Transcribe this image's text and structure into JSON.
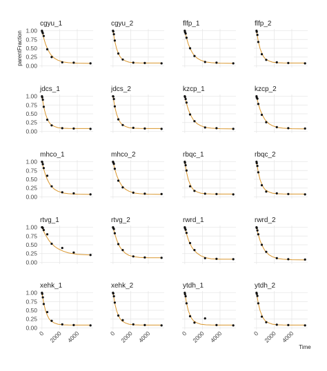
{
  "chart_data": {
    "type": "scatter",
    "ylabel": "parentFraction",
    "xlabel": "Time",
    "xlim": [
      -300,
      5800
    ],
    "ylim": [
      -0.05,
      1.05
    ],
    "xticks": [
      0,
      2000,
      4000
    ],
    "yticks": [
      {
        "value": 0,
        "label": "0.00"
      },
      {
        "value": 0.25,
        "label": "0.25"
      },
      {
        "value": 0.5,
        "label": "0.50"
      },
      {
        "value": 0.75,
        "label": "0.75"
      },
      {
        "value": 1,
        "label": "1.00"
      }
    ],
    "point_color": "#111111",
    "fit_color": "#d9952b",
    "grid": true,
    "x": [
      0,
      30,
      100,
      200,
      600,
      1100,
      2300,
      3600,
      5500
    ],
    "fit_x": [
      0,
      200,
      400,
      600,
      800,
      1000,
      1400,
      1800,
      2400,
      3000,
      4000,
      5500
    ],
    "panels": [
      {
        "title": "cgyu_1",
        "values": [
          1.0,
          0.97,
          0.93,
          0.85,
          0.47,
          0.25,
          0.1,
          0.09,
          0.07
        ],
        "fit": [
          1.0,
          0.79,
          0.62,
          0.5,
          0.4,
          0.32,
          0.22,
          0.16,
          0.11,
          0.09,
          0.075,
          0.07
        ]
      },
      {
        "title": "cgyu_2",
        "values": [
          1.0,
          0.98,
          0.9,
          0.72,
          0.35,
          0.18,
          0.09,
          0.08,
          0.07
        ],
        "fit": [
          1.0,
          0.7,
          0.49,
          0.36,
          0.26,
          0.2,
          0.14,
          0.105,
          0.087,
          0.082,
          0.08,
          0.08
        ]
      },
      {
        "title": "flfp_1",
        "values": [
          1.0,
          0.96,
          0.92,
          0.8,
          0.5,
          0.28,
          0.11,
          0.09,
          0.07
        ],
        "fit": [
          1.0,
          0.79,
          0.62,
          0.5,
          0.4,
          0.32,
          0.22,
          0.16,
          0.11,
          0.09,
          0.075,
          0.07
        ]
      },
      {
        "title": "flfp_2",
        "values": [
          1.0,
          0.97,
          0.88,
          0.68,
          0.33,
          0.17,
          0.1,
          0.08,
          0.07
        ],
        "fit": [
          1.0,
          0.7,
          0.49,
          0.36,
          0.26,
          0.2,
          0.14,
          0.105,
          0.087,
          0.082,
          0.08,
          0.08
        ]
      },
      {
        "title": "jdcs_1",
        "values": [
          1.0,
          0.97,
          0.9,
          0.7,
          0.33,
          0.17,
          0.09,
          0.08,
          0.07
        ],
        "fit": [
          1.0,
          0.7,
          0.49,
          0.36,
          0.26,
          0.2,
          0.14,
          0.105,
          0.087,
          0.082,
          0.08,
          0.08
        ]
      },
      {
        "title": "jdcs_2",
        "values": [
          1.0,
          0.99,
          0.92,
          0.71,
          0.34,
          0.18,
          0.1,
          0.08,
          0.07
        ],
        "fit": [
          1.0,
          0.7,
          0.49,
          0.36,
          0.26,
          0.2,
          0.14,
          0.105,
          0.087,
          0.082,
          0.08,
          0.08
        ]
      },
      {
        "title": "kzcp_1",
        "values": [
          1.0,
          0.98,
          0.92,
          0.82,
          0.48,
          0.29,
          0.11,
          0.09,
          0.07
        ],
        "fit": [
          1.0,
          0.79,
          0.62,
          0.5,
          0.4,
          0.32,
          0.22,
          0.16,
          0.11,
          0.09,
          0.075,
          0.07
        ]
      },
      {
        "title": "kzcp_2",
        "values": [
          1.0,
          0.96,
          0.93,
          0.78,
          0.47,
          0.26,
          0.12,
          0.09,
          0.08
        ],
        "fit": [
          1.0,
          0.79,
          0.62,
          0.5,
          0.4,
          0.32,
          0.22,
          0.16,
          0.11,
          0.09,
          0.075,
          0.07
        ]
      },
      {
        "title": "mhco_1",
        "values": [
          1.0,
          0.99,
          0.93,
          0.82,
          0.6,
          0.3,
          0.13,
          0.1,
          0.07
        ],
        "fit": [
          1.0,
          0.79,
          0.62,
          0.5,
          0.4,
          0.32,
          0.22,
          0.16,
          0.11,
          0.09,
          0.075,
          0.07
        ]
      },
      {
        "title": "mhco_2",
        "values": [
          1.0,
          0.98,
          0.94,
          0.8,
          0.46,
          0.27,
          0.12,
          0.09,
          0.08
        ],
        "fit": [
          1.0,
          0.79,
          0.62,
          0.5,
          0.4,
          0.32,
          0.22,
          0.16,
          0.11,
          0.09,
          0.075,
          0.07
        ]
      },
      {
        "title": "rbqc_1",
        "values": [
          1.0,
          0.97,
          0.9,
          0.75,
          0.3,
          0.17,
          0.09,
          0.08,
          0.07
        ],
        "fit": [
          1.0,
          0.7,
          0.49,
          0.36,
          0.26,
          0.2,
          0.14,
          0.105,
          0.087,
          0.082,
          0.08,
          0.08
        ]
      },
      {
        "title": "rbqc_2",
        "values": [
          1.0,
          0.96,
          0.88,
          0.7,
          0.33,
          0.15,
          0.1,
          0.08,
          0.07
        ],
        "fit": [
          1.0,
          0.7,
          0.49,
          0.36,
          0.26,
          0.2,
          0.14,
          0.105,
          0.087,
          0.082,
          0.08,
          0.08
        ]
      },
      {
        "title": "rtvg_1",
        "values": [
          1.0,
          1.0,
          0.98,
          0.92,
          0.8,
          0.53,
          0.41,
          0.28,
          0.21
        ],
        "fit": [
          1.0,
          0.88,
          0.78,
          0.7,
          0.62,
          0.56,
          0.46,
          0.39,
          0.32,
          0.27,
          0.23,
          0.21
        ]
      },
      {
        "title": "rtvg_2",
        "values": [
          1.0,
          0.98,
          0.95,
          0.83,
          0.52,
          0.35,
          0.17,
          0.14,
          0.13
        ],
        "fit": [
          1.0,
          0.81,
          0.65,
          0.53,
          0.43,
          0.36,
          0.26,
          0.2,
          0.16,
          0.14,
          0.13,
          0.13
        ]
      },
      {
        "title": "rwrd_1",
        "values": [
          1.0,
          0.97,
          0.93,
          0.84,
          0.55,
          0.35,
          0.12,
          0.1,
          0.09
        ],
        "fit": [
          1.0,
          0.81,
          0.65,
          0.53,
          0.43,
          0.36,
          0.26,
          0.19,
          0.13,
          0.1,
          0.09,
          0.09
        ]
      },
      {
        "title": "rwrd_2",
        "values": [
          1.0,
          0.98,
          0.91,
          0.8,
          0.5,
          0.3,
          0.12,
          0.09,
          0.08
        ],
        "fit": [
          1.0,
          0.79,
          0.62,
          0.5,
          0.4,
          0.32,
          0.22,
          0.16,
          0.11,
          0.09,
          0.075,
          0.07
        ]
      },
      {
        "title": "xehk_1",
        "values": [
          1.0,
          0.97,
          0.87,
          0.68,
          0.45,
          0.2,
          0.1,
          0.08,
          0.07
        ],
        "fit": [
          1.0,
          0.7,
          0.49,
          0.36,
          0.26,
          0.2,
          0.14,
          0.105,
          0.087,
          0.082,
          0.08,
          0.08
        ]
      },
      {
        "title": "xehk_2",
        "values": [
          1.0,
          0.98,
          0.9,
          0.72,
          0.35,
          0.22,
          0.1,
          0.08,
          0.07
        ],
        "fit": [
          1.0,
          0.7,
          0.49,
          0.36,
          0.26,
          0.2,
          0.14,
          0.105,
          0.087,
          0.082,
          0.08,
          0.08
        ]
      },
      {
        "title": "ytdh_1",
        "values": [
          1.0,
          0.96,
          0.9,
          0.7,
          0.33,
          0.15,
          0.27,
          0.08,
          0.07
        ],
        "fit": [
          1.0,
          0.7,
          0.49,
          0.36,
          0.26,
          0.2,
          0.14,
          0.105,
          0.087,
          0.082,
          0.08,
          0.08
        ]
      },
      {
        "title": "ytdh_2",
        "values": [
          1.0,
          0.97,
          0.91,
          0.7,
          0.32,
          0.16,
          0.09,
          0.08,
          0.07
        ],
        "fit": [
          1.0,
          0.7,
          0.49,
          0.36,
          0.26,
          0.2,
          0.14,
          0.105,
          0.087,
          0.082,
          0.08,
          0.08
        ]
      }
    ]
  }
}
